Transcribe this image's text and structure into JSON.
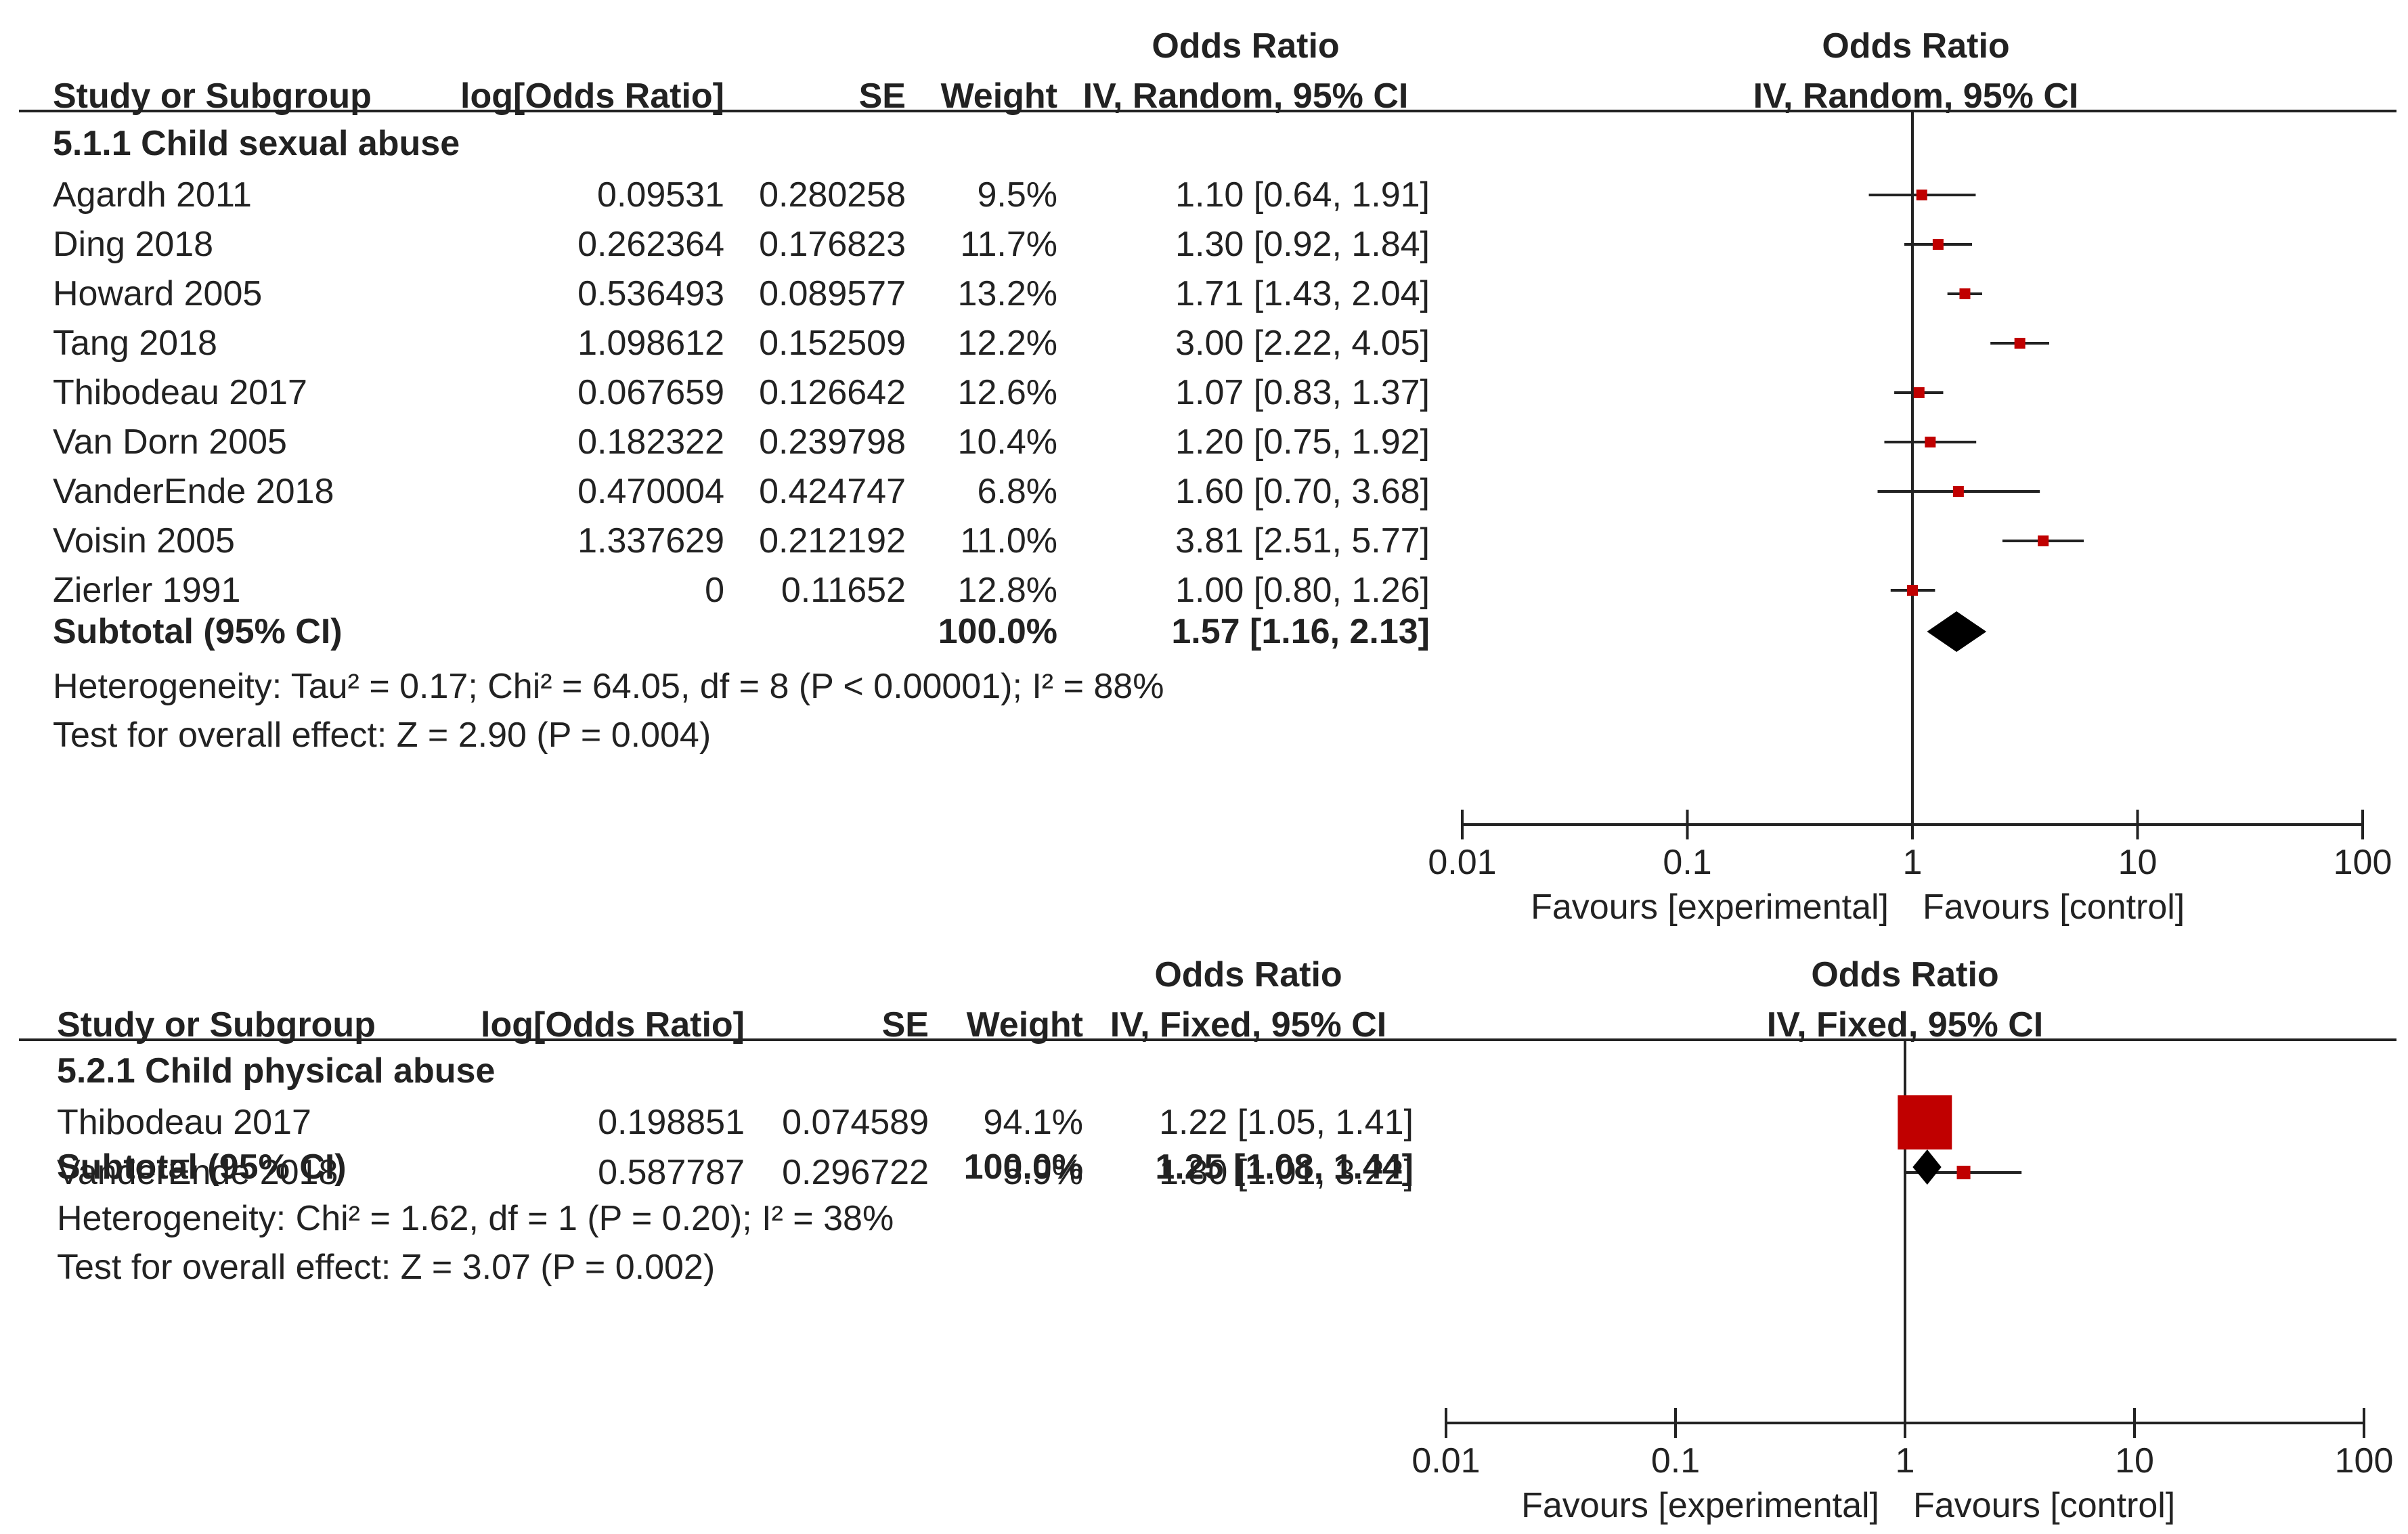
{
  "chart_data": [
    {
      "type": "forest",
      "header": {
        "study": "Study or Subgroup",
        "log_or": "log[Odds Ratio]",
        "se": "SE",
        "weight": "Weight",
        "or_title": "Odds Ratio",
        "or_method": "IV, Random, 95% CI",
        "plot_title": "Odds Ratio",
        "plot_method": "IV, Random, 95% CI"
      },
      "subgroup": "5.1.1 Child sexual abuse",
      "studies": [
        {
          "name": "Agardh 2011",
          "log_or": "0.09531",
          "se": "0.280258",
          "weight": "9.5%",
          "ci_text": "1.10 [0.64, 1.91]",
          "or": 1.1,
          "lo": 0.64,
          "hi": 1.91,
          "w": 9.5
        },
        {
          "name": "Ding 2018",
          "log_or": "0.262364",
          "se": "0.176823",
          "weight": "11.7%",
          "ci_text": "1.30 [0.92, 1.84]",
          "or": 1.3,
          "lo": 0.92,
          "hi": 1.84,
          "w": 11.7
        },
        {
          "name": "Howard 2005",
          "log_or": "0.536493",
          "se": "0.089577",
          "weight": "13.2%",
          "ci_text": "1.71 [1.43, 2.04]",
          "or": 1.71,
          "lo": 1.43,
          "hi": 2.04,
          "w": 13.2
        },
        {
          "name": "Tang 2018",
          "log_or": "1.098612",
          "se": "0.152509",
          "weight": "12.2%",
          "ci_text": "3.00 [2.22, 4.05]",
          "or": 3.0,
          "lo": 2.22,
          "hi": 4.05,
          "w": 12.2
        },
        {
          "name": "Thibodeau 2017",
          "log_or": "0.067659",
          "se": "0.126642",
          "weight": "12.6%",
          "ci_text": "1.07 [0.83, 1.37]",
          "or": 1.07,
          "lo": 0.83,
          "hi": 1.37,
          "w": 12.6
        },
        {
          "name": "Van Dorn 2005",
          "log_or": "0.182322",
          "se": "0.239798",
          "weight": "10.4%",
          "ci_text": "1.20 [0.75, 1.92]",
          "or": 1.2,
          "lo": 0.75,
          "hi": 1.92,
          "w": 10.4
        },
        {
          "name": "VanderEnde 2018",
          "log_or": "0.470004",
          "se": "0.424747",
          "weight": "6.8%",
          "ci_text": "1.60 [0.70, 3.68]",
          "or": 1.6,
          "lo": 0.7,
          "hi": 3.68,
          "w": 6.8
        },
        {
          "name": "Voisin 2005",
          "log_or": "1.337629",
          "se": "0.212192",
          "weight": "11.0%",
          "ci_text": "3.81 [2.51, 5.77]",
          "or": 3.81,
          "lo": 2.51,
          "hi": 5.77,
          "w": 11.0
        },
        {
          "name": "Zierler 1991",
          "log_or": "0",
          "se": "0.11652",
          "weight": "12.8%",
          "ci_text": "1.00 [0.80, 1.26]",
          "or": 1.0,
          "lo": 0.8,
          "hi": 1.26,
          "w": 12.8
        }
      ],
      "subtotal": {
        "label": "Subtotal (95% CI)",
        "weight": "100.0%",
        "ci_text": "1.57 [1.16, 2.13]",
        "or": 1.57,
        "lo": 1.16,
        "hi": 2.13
      },
      "heterogeneity": "Heterogeneity: Tau² = 0.17; Chi² = 64.05, df = 8 (P < 0.00001); I² = 88%",
      "overall_effect": "Test for overall effect: Z = 2.90 (P = 0.004)",
      "axis": {
        "scale": "log",
        "ticks": [
          0.01,
          0.1,
          1,
          10,
          100
        ],
        "tick_labels": [
          "0.01",
          "0.1",
          "1",
          "10",
          "100"
        ]
      },
      "favours_left": "Favours [experimental]",
      "favours_right": "Favours [control]"
    },
    {
      "type": "forest",
      "header": {
        "study": "Study or Subgroup",
        "log_or": "log[Odds Ratio]",
        "se": "SE",
        "weight": "Weight",
        "or_title": "Odds Ratio",
        "or_method": "IV, Fixed, 95% CI",
        "plot_title": "Odds Ratio",
        "plot_method": "IV, Fixed, 95% CI"
      },
      "subgroup": "5.2.1 Child physical abuse",
      "studies": [
        {
          "name": "Thibodeau 2017",
          "log_or": "0.198851",
          "se": "0.074589",
          "weight": "94.1%",
          "ci_text": "1.22 [1.05, 1.41]",
          "or": 1.22,
          "lo": 1.05,
          "hi": 1.41,
          "w": 94.1
        },
        {
          "name": "VanderEnde 2018",
          "log_or": "0.587787",
          "se": "0.296722",
          "weight": "5.9%",
          "ci_text": "1.80 [1.01, 3.22]",
          "or": 1.8,
          "lo": 1.01,
          "hi": 3.22,
          "w": 5.9
        }
      ],
      "subtotal": {
        "label": "Subtotal (95% CI)",
        "weight": "100.0%",
        "ci_text": "1.25 [1.08, 1.44]",
        "or": 1.25,
        "lo": 1.08,
        "hi": 1.44
      },
      "heterogeneity": "Heterogeneity: Chi² = 1.62, df = 1 (P = 0.20); I² = 38%",
      "overall_effect": "Test for overall effect: Z = 3.07 (P = 0.002)",
      "axis": {
        "scale": "log",
        "ticks": [
          0.01,
          0.1,
          1,
          10,
          100
        ],
        "tick_labels": [
          "0.01",
          "0.1",
          "1",
          "10",
          "100"
        ]
      },
      "favours_left": "Favours [experimental]",
      "favours_right": "Favours [control]"
    }
  ],
  "colors": {
    "marker": "#c00000",
    "line": "#222222",
    "diamond": "#000000"
  }
}
